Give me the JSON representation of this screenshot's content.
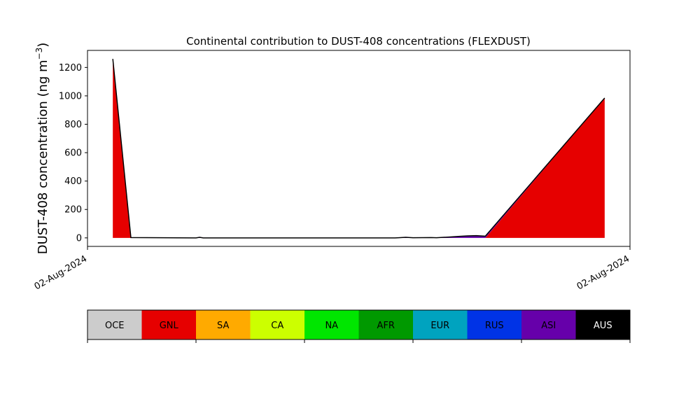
{
  "chart_data": {
    "type": "area",
    "title": "Continental contribution to DUST-408 concentrations (FLEXDUST)",
    "ylabel_main": "DUST-408 concentration (ng m",
    "ylabel_sup": "−3",
    "ylabel_close": ")",
    "xlabel": "",
    "ylim": [
      -60,
      1320
    ],
    "xlim": [
      0,
      30
    ],
    "yticks": [
      "0",
      "200",
      "400",
      "600",
      "800",
      "1000",
      "1200"
    ],
    "ytick_values": [
      0,
      200,
      400,
      600,
      800,
      1000,
      1200
    ],
    "xtick_labels": [
      "02-Aug-2024",
      "02-Aug-2024"
    ],
    "xtick_values": [
      0,
      30
    ],
    "x": [
      1.4,
      2.4,
      6.0,
      6.2,
      6.4,
      17.0,
      17.2,
      17.6,
      18.0,
      19.0,
      19.3,
      20.0,
      20.5,
      21.0,
      21.5,
      22.0,
      28.6
    ],
    "total": [
      1260,
      2,
      0,
      4,
      0,
      0,
      1,
      4,
      1,
      2,
      1,
      6,
      10,
      14,
      16,
      12,
      985
    ],
    "series": [
      {
        "name": "GNL",
        "values": [
          1258,
          0,
          0,
          0,
          0,
          0,
          0,
          0,
          0,
          0,
          0,
          0,
          0,
          0,
          0,
          0,
          985
        ]
      },
      {
        "name": "ASI",
        "values": [
          0,
          1,
          0,
          3,
          0,
          0,
          1,
          3,
          1,
          2,
          1,
          5,
          9,
          13,
          15,
          11,
          0
        ]
      }
    ],
    "legend": {
      "position": "bottom",
      "entries": [
        {
          "name": "OCE",
          "color": "#cccccc",
          "text_color": "#000000"
        },
        {
          "name": "GNL",
          "color": "#e60000",
          "text_color": "#000000"
        },
        {
          "name": "SA",
          "color": "#ffaa00",
          "text_color": "#000000"
        },
        {
          "name": "CA",
          "color": "#ccff00",
          "text_color": "#000000"
        },
        {
          "name": "NA",
          "color": "#00e600",
          "text_color": "#000000"
        },
        {
          "name": "AFR",
          "color": "#009900",
          "text_color": "#000000"
        },
        {
          "name": "EUR",
          "color": "#00a3bf",
          "text_color": "#000000"
        },
        {
          "name": "RUS",
          "color": "#0033e6",
          "text_color": "#000000"
        },
        {
          "name": "ASI",
          "color": "#6600aa",
          "text_color": "#000000"
        },
        {
          "name": "AUS",
          "color": "#000000",
          "text_color": "#ffffff"
        }
      ]
    },
    "grid": false
  }
}
